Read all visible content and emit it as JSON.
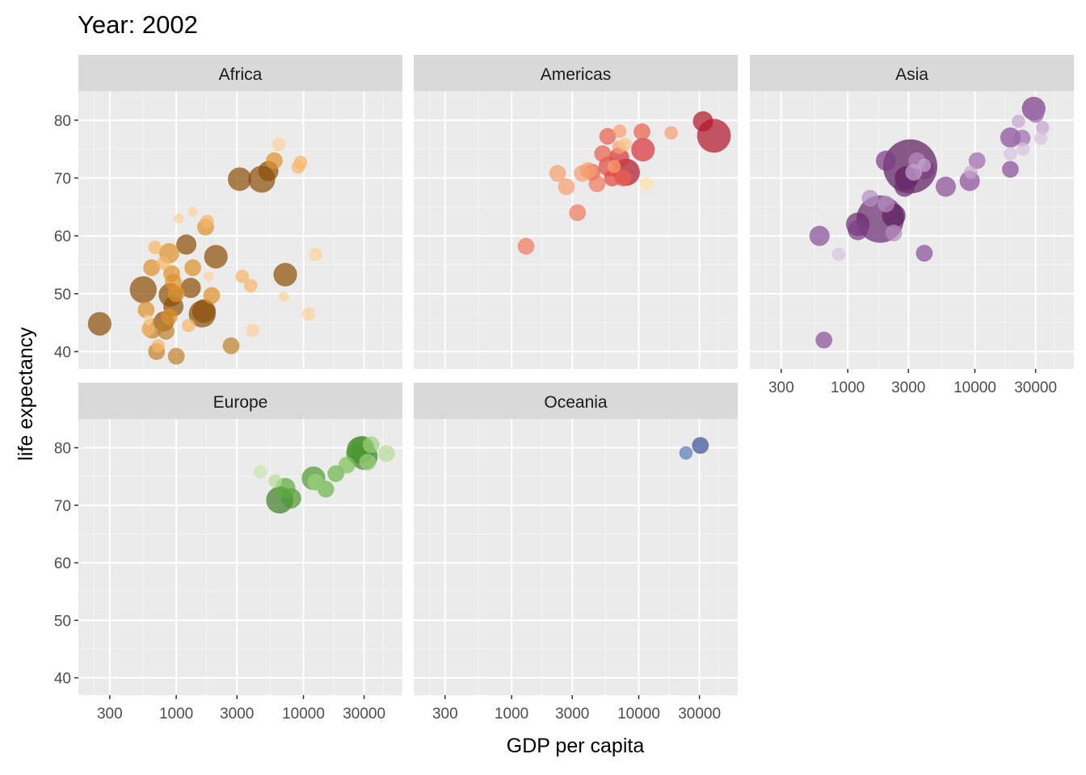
{
  "title": "Year: 2002",
  "chart_data": {
    "type": "scatter",
    "xlabel": "GDP per capita",
    "ylabel": "life expectancy",
    "x_scale": "log10",
    "xlim": [
      170,
      60000
    ],
    "ylim": [
      37,
      85
    ],
    "x_ticks": [
      {
        "value": 300,
        "label": "300"
      },
      {
        "value": 1000,
        "label": "1000"
      },
      {
        "value": 3000,
        "label": "3000"
      },
      {
        "value": 10000,
        "label": "10000"
      },
      {
        "value": 30000,
        "label": "30000"
      }
    ],
    "y_ticks": [
      {
        "value": 40,
        "label": "40"
      },
      {
        "value": 50,
        "label": "50"
      },
      {
        "value": 60,
        "label": "60"
      },
      {
        "value": 70,
        "label": "70"
      },
      {
        "value": 80,
        "label": "80"
      }
    ],
    "grid": true,
    "legend": "none",
    "panels": [
      {
        "name": "Africa",
        "points": [
          {
            "x": 250,
            "y": 44.8,
            "s": 6,
            "c": "#8C510A"
          },
          {
            "x": 800,
            "y": 45.2,
            "s": 5,
            "c": "#8C510A"
          },
          {
            "x": 1600,
            "y": 46.5,
            "s": 7,
            "c": "#8C510A"
          },
          {
            "x": 1650,
            "y": 47.0,
            "s": 6,
            "c": "#8C510A"
          },
          {
            "x": 550,
            "y": 50.7,
            "s": 7,
            "c": "#8C510A"
          },
          {
            "x": 950,
            "y": 47.8,
            "s": 5,
            "c": "#8C510A"
          },
          {
            "x": 900,
            "y": 49.8,
            "s": 6,
            "c": "#8C510A"
          },
          {
            "x": 1300,
            "y": 51.0,
            "s": 5,
            "c": "#8C510A"
          },
          {
            "x": 2050,
            "y": 56.4,
            "s": 6,
            "c": "#8C510A"
          },
          {
            "x": 1200,
            "y": 58.5,
            "s": 5,
            "c": "#8C510A"
          },
          {
            "x": 3150,
            "y": 69.8,
            "s": 6,
            "c": "#8C510A"
          },
          {
            "x": 4700,
            "y": 69.8,
            "s": 7,
            "c": "#8C510A"
          },
          {
            "x": 5300,
            "y": 71.2,
            "s": 5,
            "c": "#8C510A"
          },
          {
            "x": 7200,
            "y": 53.3,
            "s": 6,
            "c": "#8C510A"
          },
          {
            "x": 2700,
            "y": 41.0,
            "s": 4,
            "c": "#BF812D"
          },
          {
            "x": 650,
            "y": 44.0,
            "s": 5,
            "c": "#BF812D"
          },
          {
            "x": 700,
            "y": 40.0,
            "s": 4,
            "c": "#BF812D"
          },
          {
            "x": 1000,
            "y": 39.2,
            "s": 4,
            "c": "#BF812D"
          },
          {
            "x": 830,
            "y": 43.5,
            "s": 4,
            "c": "#BF812D"
          },
          {
            "x": 880,
            "y": 46.0,
            "s": 4,
            "c": "#DF922B"
          },
          {
            "x": 580,
            "y": 47.2,
            "s": 4,
            "c": "#DF922B"
          },
          {
            "x": 950,
            "y": 52.0,
            "s": 4,
            "c": "#DF922B"
          },
          {
            "x": 1000,
            "y": 50.0,
            "s": 4,
            "c": "#DF922B"
          },
          {
            "x": 640,
            "y": 54.5,
            "s": 4,
            "c": "#DF922B"
          },
          {
            "x": 880,
            "y": 57.0,
            "s": 5,
            "c": "#DF922B"
          },
          {
            "x": 920,
            "y": 53.5,
            "s": 4,
            "c": "#DF922B"
          },
          {
            "x": 1350,
            "y": 54.5,
            "s": 4,
            "c": "#DF922B"
          },
          {
            "x": 1900,
            "y": 49.7,
            "s": 4,
            "c": "#DF922B"
          },
          {
            "x": 1700,
            "y": 61.5,
            "s": 4,
            "c": "#DF922B"
          },
          {
            "x": 5900,
            "y": 73.0,
            "s": 4,
            "c": "#DF922B"
          },
          {
            "x": 1250,
            "y": 44.5,
            "s": 3,
            "c": "#F6B566"
          },
          {
            "x": 720,
            "y": 41.0,
            "s": 3,
            "c": "#F6B566"
          },
          {
            "x": 680,
            "y": 58.0,
            "s": 3,
            "c": "#F6B566"
          },
          {
            "x": 790,
            "y": 55.3,
            "s": 3,
            "c": "#F6B566"
          },
          {
            "x": 3300,
            "y": 53.0,
            "s": 3,
            "c": "#F6B566"
          },
          {
            "x": 3850,
            "y": 51.4,
            "s": 3,
            "c": "#F6B566"
          },
          {
            "x": 1750,
            "y": 62.5,
            "s": 3,
            "c": "#F6B566"
          },
          {
            "x": 9500,
            "y": 72.7,
            "s": 3,
            "c": "#F6B566"
          },
          {
            "x": 9100,
            "y": 71.9,
            "s": 3,
            "c": "#F6B566"
          },
          {
            "x": 600,
            "y": 43.8,
            "s": 3,
            "c": "#F6B566"
          },
          {
            "x": 4000,
            "y": 43.7,
            "s": 3,
            "c": "#FBD39C"
          },
          {
            "x": 11000,
            "y": 46.5,
            "s": 3,
            "c": "#FBD39C"
          },
          {
            "x": 12500,
            "y": 56.8,
            "s": 3,
            "c": "#FBD39C"
          },
          {
            "x": 7000,
            "y": 49.5,
            "s": 2,
            "c": "#FBD39C"
          },
          {
            "x": 6400,
            "y": 75.8,
            "s": 3,
            "c": "#FBD39C"
          },
          {
            "x": 1050,
            "y": 63.0,
            "s": 2,
            "c": "#FBD39C"
          },
          {
            "x": 1350,
            "y": 64.2,
            "s": 2,
            "c": "#FBD39C"
          },
          {
            "x": 1800,
            "y": 53.0,
            "s": 2,
            "c": "#FBD39C"
          },
          {
            "x": 600,
            "y": 45.5,
            "s": 2,
            "c": "#FBD39C"
          }
        ]
      },
      {
        "name": "Americas",
        "points": [
          {
            "x": 39000,
            "y": 77.3,
            "s": 9,
            "c": "#B2182B"
          },
          {
            "x": 32000,
            "y": 79.8,
            "s": 5,
            "c": "#B2182B"
          },
          {
            "x": 8000,
            "y": 71.0,
            "s": 7,
            "c": "#B2182B"
          },
          {
            "x": 10800,
            "y": 74.9,
            "s": 6,
            "c": "#D6343D"
          },
          {
            "x": 7000,
            "y": 73.5,
            "s": 5,
            "c": "#D6343D"
          },
          {
            "x": 5800,
            "y": 72.0,
            "s": 5,
            "c": "#E04A3F"
          },
          {
            "x": 5200,
            "y": 74.2,
            "s": 4,
            "c": "#E8604D"
          },
          {
            "x": 6200,
            "y": 70.0,
            "s": 4,
            "c": "#E04A3F"
          },
          {
            "x": 4300,
            "y": 71.0,
            "s": 4,
            "c": "#E8604D"
          },
          {
            "x": 7500,
            "y": 70.0,
            "s": 4,
            "c": "#E8604D"
          },
          {
            "x": 10600,
            "y": 78.0,
            "s": 4,
            "c": "#E8604D"
          },
          {
            "x": 5700,
            "y": 77.2,
            "s": 4,
            "c": "#E8604D"
          },
          {
            "x": 4700,
            "y": 69.0,
            "s": 4,
            "c": "#EF7A5E"
          },
          {
            "x": 3300,
            "y": 64.0,
            "s": 4,
            "c": "#EF7A5E"
          },
          {
            "x": 1300,
            "y": 58.2,
            "s": 4,
            "c": "#EF7A5E"
          },
          {
            "x": 2700,
            "y": 68.5,
            "s": 4,
            "c": "#F6A06F"
          },
          {
            "x": 2300,
            "y": 70.8,
            "s": 4,
            "c": "#F6A06F"
          },
          {
            "x": 3600,
            "y": 70.8,
            "s": 4,
            "c": "#F6A06F"
          },
          {
            "x": 4000,
            "y": 71.3,
            "s": 4,
            "c": "#F6A06F"
          },
          {
            "x": 7100,
            "y": 78.1,
            "s": 3,
            "c": "#F6A06F"
          },
          {
            "x": 7000,
            "y": 75.3,
            "s": 3,
            "c": "#F6A06F"
          },
          {
            "x": 6400,
            "y": 72.0,
            "s": 3,
            "c": "#F6A06F"
          },
          {
            "x": 18000,
            "y": 77.8,
            "s": 3,
            "c": "#F6A06F"
          },
          {
            "x": 7800,
            "y": 75.8,
            "s": 3,
            "c": "#FBC38A"
          },
          {
            "x": 11500,
            "y": 69.0,
            "s": 3,
            "c": "#FCE3A7"
          }
        ]
      },
      {
        "name": "Asia",
        "points": [
          {
            "x": 3100,
            "y": 72.0,
            "s": 15,
            "c": "#5E1F5E"
          },
          {
            "x": 1800,
            "y": 62.9,
            "s": 13,
            "c": "#6A2C70"
          },
          {
            "x": 2900,
            "y": 70.0,
            "s": 6,
            "c": "#5E1F5E"
          },
          {
            "x": 2800,
            "y": 68.5,
            "s": 5,
            "c": "#6A2C70"
          },
          {
            "x": 2300,
            "y": 63.5,
            "s": 6,
            "c": "#5E1F5E"
          },
          {
            "x": 1200,
            "y": 62.0,
            "s": 6,
            "c": "#6A2C70"
          },
          {
            "x": 1200,
            "y": 61.0,
            "s": 5,
            "c": "#7B3F87"
          },
          {
            "x": 2000,
            "y": 73.0,
            "s": 5,
            "c": "#7B3F87"
          },
          {
            "x": 4000,
            "y": 71.5,
            "s": 5,
            "c": "#7B3F87"
          },
          {
            "x": 5900,
            "y": 68.5,
            "s": 5,
            "c": "#8A4F99"
          },
          {
            "x": 9100,
            "y": 69.5,
            "s": 5,
            "c": "#8A4F99"
          },
          {
            "x": 29000,
            "y": 82.0,
            "s": 6,
            "c": "#7B3F87"
          },
          {
            "x": 19000,
            "y": 77.0,
            "s": 5,
            "c": "#8A4F99"
          },
          {
            "x": 19000,
            "y": 71.5,
            "s": 4,
            "c": "#8A4F99"
          },
          {
            "x": 23500,
            "y": 76.9,
            "s": 4,
            "c": "#9C6AAD"
          },
          {
            "x": 30000,
            "y": 81.0,
            "s": 4,
            "c": "#9C6AAD"
          },
          {
            "x": 10400,
            "y": 73.0,
            "s": 4,
            "c": "#9C6AAD"
          },
          {
            "x": 4000,
            "y": 57.0,
            "s": 4,
            "c": "#8A4F99"
          },
          {
            "x": 600,
            "y": 60.0,
            "s": 5,
            "c": "#8A4F99"
          },
          {
            "x": 650,
            "y": 42.0,
            "s": 4,
            "c": "#8A4F99"
          },
          {
            "x": 2000,
            "y": 65.5,
            "s": 4,
            "c": "#B58DC0"
          },
          {
            "x": 1500,
            "y": 66.5,
            "s": 4,
            "c": "#B58DC0"
          },
          {
            "x": 2300,
            "y": 60.5,
            "s": 4,
            "c": "#B58DC0"
          },
          {
            "x": 3500,
            "y": 73.0,
            "s": 4,
            "c": "#B58DC0"
          },
          {
            "x": 3300,
            "y": 71.0,
            "s": 4,
            "c": "#C6A6D0"
          },
          {
            "x": 4000,
            "y": 72.2,
            "s": 3,
            "c": "#C6A6D0"
          },
          {
            "x": 9300,
            "y": 71.0,
            "s": 3,
            "c": "#C6A6D0"
          },
          {
            "x": 22000,
            "y": 79.8,
            "s": 3,
            "c": "#C6A6D0"
          },
          {
            "x": 34000,
            "y": 78.7,
            "s": 3,
            "c": "#C6A6D0"
          },
          {
            "x": 33000,
            "y": 76.9,
            "s": 3,
            "c": "#D8C2DF"
          },
          {
            "x": 24000,
            "y": 75.0,
            "s": 3,
            "c": "#D8C2DF"
          },
          {
            "x": 19000,
            "y": 74.2,
            "s": 3,
            "c": "#D8C2DF"
          },
          {
            "x": 850,
            "y": 56.8,
            "s": 3,
            "c": "#D8C2DF"
          }
        ]
      },
      {
        "name": "Europe",
        "points": [
          {
            "x": 6500,
            "y": 70.9,
            "s": 7,
            "c": "#3F7F2A"
          },
          {
            "x": 28000,
            "y": 79.6,
            "s": 7,
            "c": "#3F7F2A"
          },
          {
            "x": 30000,
            "y": 78.5,
            "s": 7,
            "c": "#3F7F2A"
          },
          {
            "x": 29000,
            "y": 80.0,
            "s": 6,
            "c": "#4D9A32"
          },
          {
            "x": 26000,
            "y": 79.0,
            "s": 5,
            "c": "#4D9A32"
          },
          {
            "x": 12000,
            "y": 74.7,
            "s": 6,
            "c": "#4D9A32"
          },
          {
            "x": 8000,
            "y": 71.2,
            "s": 5,
            "c": "#4D9A32"
          },
          {
            "x": 7200,
            "y": 73.0,
            "s": 5,
            "c": "#5BAA3E"
          },
          {
            "x": 15000,
            "y": 72.8,
            "s": 4,
            "c": "#6DB54C"
          },
          {
            "x": 18000,
            "y": 75.5,
            "s": 4,
            "c": "#6DB54C"
          },
          {
            "x": 22000,
            "y": 77.0,
            "s": 4,
            "c": "#7FC05C"
          },
          {
            "x": 32000,
            "y": 77.5,
            "s": 4,
            "c": "#9BD07A"
          },
          {
            "x": 34000,
            "y": 80.5,
            "s": 4,
            "c": "#9BD07A"
          },
          {
            "x": 45000,
            "y": 79.0,
            "s": 4,
            "c": "#B5DC98"
          },
          {
            "x": 12500,
            "y": 74.0,
            "s": 4,
            "c": "#9BD07A"
          },
          {
            "x": 6000,
            "y": 74.2,
            "s": 3,
            "c": "#B5DC98"
          },
          {
            "x": 4600,
            "y": 75.8,
            "s": 3,
            "c": "#C8E6B0"
          }
        ]
      },
      {
        "name": "Oceania",
        "points": [
          {
            "x": 30500,
            "y": 80.4,
            "s": 4,
            "c": "#3D539A"
          },
          {
            "x": 23500,
            "y": 79.1,
            "s": 3,
            "c": "#5B7DB8"
          }
        ]
      }
    ]
  }
}
